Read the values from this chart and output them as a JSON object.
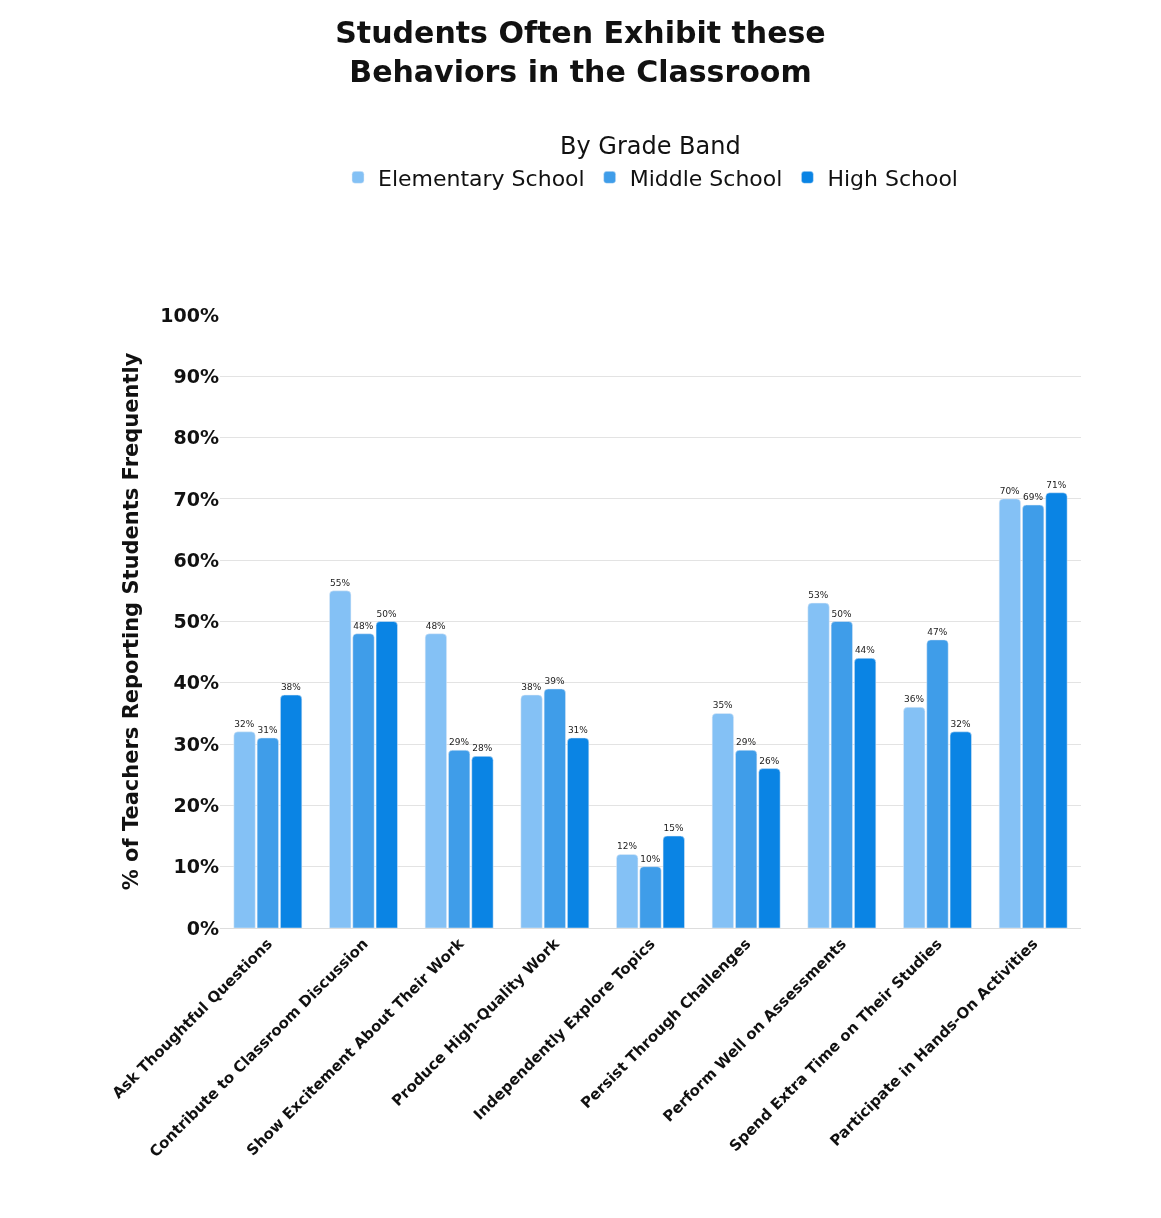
{
  "chart_data": {
    "type": "bar",
    "title": "Students Often Exhibit these\nBehaviors in the Classroom",
    "subtitle": "By Grade Band",
    "ylabel": "% of Teachers Reporting Students Frequently",
    "categories": [
      "Ask Thoughtful Questions",
      "Contribute to Classroom Discussion",
      "Show Excitement About Their Work",
      "Produce High-Quality Work",
      "Independently Explore Topics",
      "Persist Through Challenges",
      "Perform Well on Assessments",
      "Spend Extra Time on Their Studies",
      "Participate in Hands-On Activities"
    ],
    "series": [
      {
        "name": "Elementary School",
        "color": "#84c1f5",
        "values": [
          32,
          55,
          48,
          38,
          12,
          35,
          53,
          36,
          70
        ],
        "value_labels": [
          "32%",
          "55%",
          "48%",
          "38%",
          "12%",
          "35%",
          "53%",
          "36%",
          "70%"
        ]
      },
      {
        "name": "Middle School",
        "color": "#3f9de9",
        "values": [
          31,
          48,
          29,
          39,
          10,
          29,
          50,
          47,
          69
        ],
        "value_labels": [
          "31%",
          "48%",
          "29%",
          "39%",
          "10%",
          "29%",
          "50%",
          "47%",
          "69%"
        ]
      },
      {
        "name": "High School",
        "color": "#0a84e4",
        "values": [
          38,
          50,
          28,
          31,
          15,
          26,
          44,
          32,
          71
        ],
        "value_labels": [
          "38%",
          "50%",
          "28%",
          "31%",
          "15%",
          "26%",
          "44%",
          "32%",
          "71%"
        ]
      }
    ],
    "ylim": [
      0,
      100
    ],
    "yticks": [
      {
        "value": 0,
        "label": "0%"
      },
      {
        "value": 10,
        "label": "10%"
      },
      {
        "value": 20,
        "label": "20%"
      },
      {
        "value": 30,
        "label": "30%"
      },
      {
        "value": 40,
        "label": "40%"
      },
      {
        "value": 50,
        "label": "50%"
      },
      {
        "value": 60,
        "label": "60%"
      },
      {
        "value": 70,
        "label": "70%"
      },
      {
        "value": 80,
        "label": "80%"
      },
      {
        "value": 90,
        "label": "90%"
      },
      {
        "value": 100,
        "label": "100%"
      }
    ],
    "grid": "y",
    "legend": "top"
  }
}
